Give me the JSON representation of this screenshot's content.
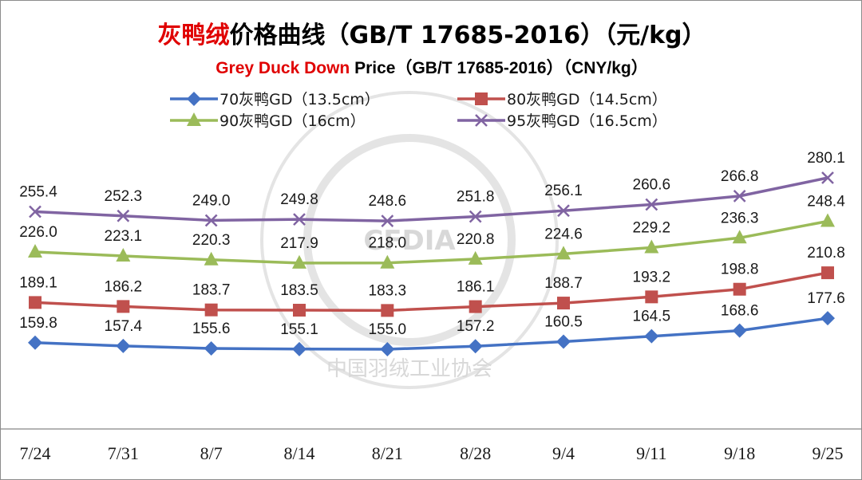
{
  "chart_data": {
    "type": "line",
    "title_red": "灰鸭绒",
    "title_rest": "价格曲线（GB/T 17685-2016）（元/kg）",
    "subtitle_red": "Grey Duck Down",
    "subtitle_rest": " Price（GB/T 17685-2016）（CNY/kg）",
    "categories": [
      "7/24",
      "7/31",
      "8/7",
      "8/14",
      "8/21",
      "8/28",
      "9/4",
      "9/11",
      "9/18",
      "9/25"
    ],
    "series": [
      {
        "name": "70灰鸭GD（13.5cm）",
        "color": "#4472c4",
        "marker": "diamond",
        "values": [
          159.8,
          157.4,
          155.6,
          155.1,
          155.0,
          157.2,
          160.5,
          164.5,
          168.6,
          177.6
        ]
      },
      {
        "name": "80灰鸭GD（14.5cm）",
        "color": "#c0504d",
        "marker": "square",
        "values": [
          189.1,
          186.2,
          183.7,
          183.5,
          183.3,
          186.1,
          188.7,
          193.2,
          198.8,
          210.8
        ]
      },
      {
        "name": "90灰鸭GD（16cm）",
        "color": "#9bbb59",
        "marker": "triangle",
        "values": [
          226.0,
          223.1,
          220.3,
          217.9,
          218.0,
          220.8,
          224.6,
          229.2,
          236.3,
          248.4
        ]
      },
      {
        "name": "95灰鸭GD（16.5cm）",
        "color": "#8064a2",
        "marker": "x",
        "values": [
          255.4,
          252.3,
          249.0,
          249.8,
          248.6,
          251.8,
          256.1,
          260.6,
          266.8,
          280.1
        ]
      }
    ],
    "grid": false,
    "legend": "top"
  },
  "watermark": {
    "logo_text": "CFDIA",
    "ring_text": "中国羽绒工业协会"
  }
}
